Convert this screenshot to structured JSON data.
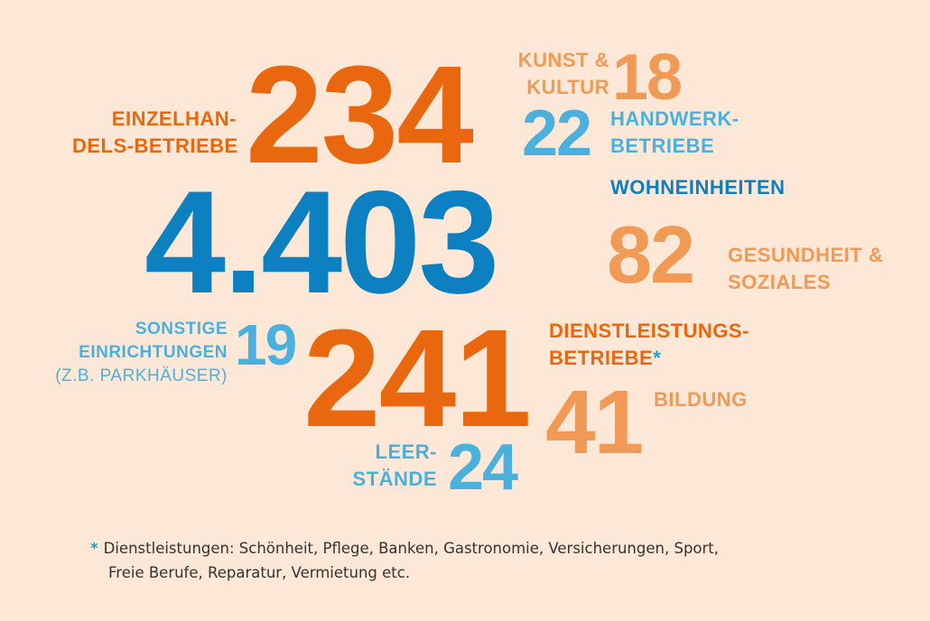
{
  "colors": {
    "background": "#fde8d7",
    "orange": "#e8670f",
    "light_orange": "#f09a55",
    "blue": "#0c80c0",
    "light_blue": "#4cb0dc",
    "footnote_text": "#333333"
  },
  "stats": {
    "einzelhandel": {
      "value": "234",
      "label_line1": "EINZELHAN-",
      "label_line2": "DELS-BETRIEBE"
    },
    "kunst": {
      "value": "18",
      "label_line1": "KUNST &",
      "label_line2": "KULTUR"
    },
    "handwerk": {
      "value": "22",
      "label_line1": "HANDWERK-",
      "label_line2": "BETRIEBE"
    },
    "wohneinheiten": {
      "value": "4.403",
      "label": "WOHNEINHEITEN"
    },
    "gesundheit": {
      "value": "82",
      "label_line1": "GESUNDHEIT &",
      "label_line2": "SOZIALES"
    },
    "sonstige": {
      "value": "19",
      "label_line1": "SONSTIGE",
      "label_line2": "EINRICHTUNGEN",
      "label_line3": "(Z.B. PARKHÄUSER)"
    },
    "dienstleistung": {
      "value": "241",
      "label_line1": "DIENSTLEISTUNGS-",
      "label_line2": "BETRIEBE",
      "asterisk": "*"
    },
    "bildung": {
      "value": "41",
      "label": "BILDUNG"
    },
    "leerstaende": {
      "value": "24",
      "label_line1": "LEER-",
      "label_line2": "STÄNDE"
    }
  },
  "footnote": {
    "star": "*",
    "line1": "Dienstleistungen: Schönheit, Pflege, Banken, Gastronomie, Versicherungen, Sport,",
    "line2": "Freie Berufe, Reparatur, Vermietung etc."
  }
}
